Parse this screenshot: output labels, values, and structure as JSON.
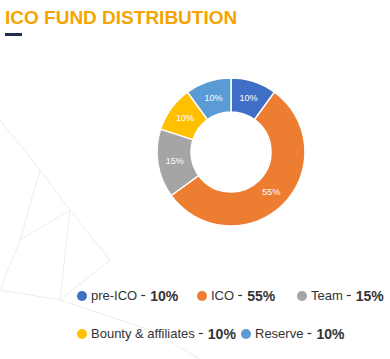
{
  "chart_data": {
    "type": "donut",
    "title": "ICO FUND DISTRIBUTION",
    "categories": [
      "pre-ICO",
      "ICO",
      "Team",
      "Bounty & affiliates",
      "Reserve"
    ],
    "values": [
      10,
      55,
      15,
      10,
      10
    ],
    "value_labels": [
      "10%",
      "55%",
      "15%",
      "10%",
      "10%"
    ],
    "colors": [
      "#3f6fc4",
      "#ed7d31",
      "#a5a5a5",
      "#ffc000",
      "#5b9bd5"
    ],
    "data_labels": true,
    "legend": "bottom"
  }
}
